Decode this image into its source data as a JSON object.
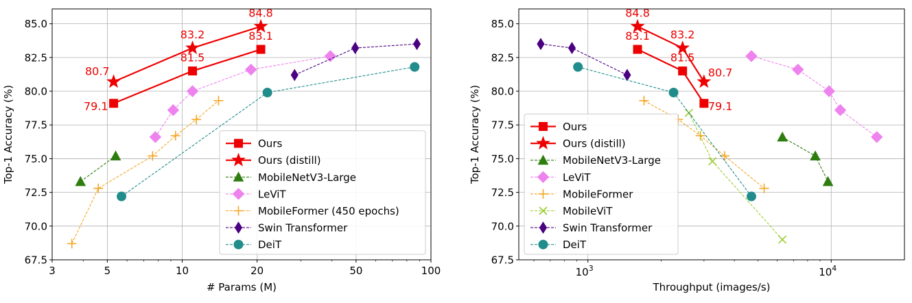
{
  "chart_data": [
    {
      "type": "line",
      "xlabel": "# Params (M)",
      "ylabel": "Top-1 Accuracy (%)",
      "x_scale": "log",
      "xlim": [
        3,
        100
      ],
      "ylim": [
        67.5,
        86.1
      ],
      "x_ticks": [
        "3",
        "5",
        "10",
        "20",
        "50",
        "100"
      ],
      "x_tick_values": [
        3,
        5,
        10,
        20,
        50,
        100
      ],
      "y_ticks": [
        "67.5",
        "70.0",
        "72.5",
        "75.0",
        "77.5",
        "80.0",
        "82.5",
        "85.0"
      ],
      "y_tick_values": [
        67.5,
        70.0,
        72.5,
        75.0,
        77.5,
        80.0,
        82.5,
        85.0
      ],
      "grid": true,
      "legend_position": "bottom-right",
      "series": [
        {
          "name": "Ours",
          "color": "#ee0000",
          "marker": "square",
          "dash": "solid",
          "x": [
            5.3,
            11.0,
            20.7
          ],
          "y": [
            79.1,
            81.5,
            83.1
          ],
          "labels": [
            "79.1",
            "81.5",
            "83.1"
          ]
        },
        {
          "name": "Ours (distill)",
          "color": "#ee0000",
          "marker": "star",
          "dash": "solid",
          "x": [
            5.3,
            11.0,
            20.7
          ],
          "y": [
            80.7,
            83.2,
            84.8
          ],
          "labels": [
            "80.7",
            "83.2",
            "84.8"
          ]
        },
        {
          "name": "MobileNetV3-Large",
          "color": "#2e7d0f",
          "marker": "triangle",
          "dash": "dashed",
          "x": [
            3.9,
            5.4
          ],
          "y": [
            73.3,
            75.2
          ]
        },
        {
          "name": "LeViT",
          "color": "#ee82ee",
          "marker": "diamond",
          "dash": "dashed",
          "x": [
            7.8,
            9.2,
            11.0,
            18.9,
            39.4
          ],
          "y": [
            76.6,
            78.6,
            80.0,
            81.6,
            82.6
          ]
        },
        {
          "name": "MobileFormer (450 epochs)",
          "color": "#f5a623",
          "marker": "plus",
          "dash": "dashed",
          "x": [
            3.6,
            4.6,
            7.6,
            9.4,
            11.4,
            14.0
          ],
          "y": [
            68.7,
            72.8,
            75.2,
            76.7,
            77.9,
            79.3
          ]
        },
        {
          "name": "Swin Transformer",
          "color": "#4b0082",
          "marker": "thin_diamond",
          "dash": "dashed",
          "x": [
            28.3,
            49.6,
            87.8
          ],
          "y": [
            81.2,
            83.2,
            83.5
          ]
        },
        {
          "name": "DeiT",
          "color": "#218c8c",
          "marker": "circle",
          "dash": "dashed",
          "x": [
            5.7,
            22.0,
            86.0
          ],
          "y": [
            72.2,
            79.9,
            81.8
          ]
        }
      ]
    },
    {
      "type": "line",
      "xlabel": "Throughput (images/s)",
      "ylabel": "Top-1 Accuracy (%)",
      "x_scale": "log",
      "xlim": [
        520,
        20000
      ],
      "ylim": [
        67.5,
        86.1
      ],
      "x_ticks_base": "10",
      "x_ticks_exp": [
        "3",
        "4"
      ],
      "x_tick_values": [
        1000,
        10000
      ],
      "y_ticks": [
        "67.5",
        "70.0",
        "72.5",
        "75.0",
        "77.5",
        "80.0",
        "82.5",
        "85.0"
      ],
      "y_tick_values": [
        67.5,
        70.0,
        72.5,
        75.0,
        77.5,
        80.0,
        82.5,
        85.0
      ],
      "grid": true,
      "legend_position": "bottom-left",
      "series": [
        {
          "name": "Ours",
          "color": "#ee0000",
          "marker": "square",
          "dash": "solid",
          "x": [
            1600,
            2450,
            3000
          ],
          "y": [
            83.1,
            81.5,
            79.1
          ],
          "labels": [
            "83.1",
            "81.5",
            "79.1"
          ]
        },
        {
          "name": "Ours (distill)",
          "color": "#ee0000",
          "marker": "star",
          "dash": "solid",
          "x": [
            1600,
            2450,
            3000
          ],
          "y": [
            84.8,
            83.2,
            80.7
          ],
          "labels": [
            "84.8",
            "83.2",
            "80.7"
          ]
        },
        {
          "name": "MobileNetV3-Large",
          "color": "#2e7d0f",
          "marker": "triangle",
          "dash": "dashed",
          "x": [
            6300,
            8600,
            9700
          ],
          "y": [
            76.6,
            75.2,
            73.3
          ]
        },
        {
          "name": "LeViT",
          "color": "#ee82ee",
          "marker": "diamond",
          "dash": "dashed",
          "x": [
            4700,
            7300,
            9800,
            10900,
            15400
          ],
          "y": [
            82.6,
            81.6,
            80.0,
            78.6,
            76.6
          ]
        },
        {
          "name": "MobileFormer",
          "color": "#f5a623",
          "marker": "plus",
          "dash": "dashed",
          "x": [
            1700,
            2350,
            2900,
            3650,
            5300
          ],
          "y": [
            79.3,
            77.9,
            76.7,
            75.2,
            72.8
          ]
        },
        {
          "name": "MobileViT",
          "color": "#9acd32",
          "marker": "x",
          "dash": "dashed",
          "x": [
            2600,
            3250,
            6300
          ],
          "y": [
            78.4,
            74.8,
            69.0
          ]
        },
        {
          "name": "Swin Transformer",
          "color": "#4b0082",
          "marker": "thin_diamond",
          "dash": "dashed",
          "x": [
            640,
            860,
            1450
          ],
          "y": [
            83.5,
            83.2,
            81.2
          ]
        },
        {
          "name": "DeiT",
          "color": "#218c8c",
          "marker": "circle",
          "dash": "dashed",
          "x": [
            910,
            2250,
            4700
          ],
          "y": [
            81.8,
            79.9,
            72.2
          ]
        }
      ]
    }
  ]
}
